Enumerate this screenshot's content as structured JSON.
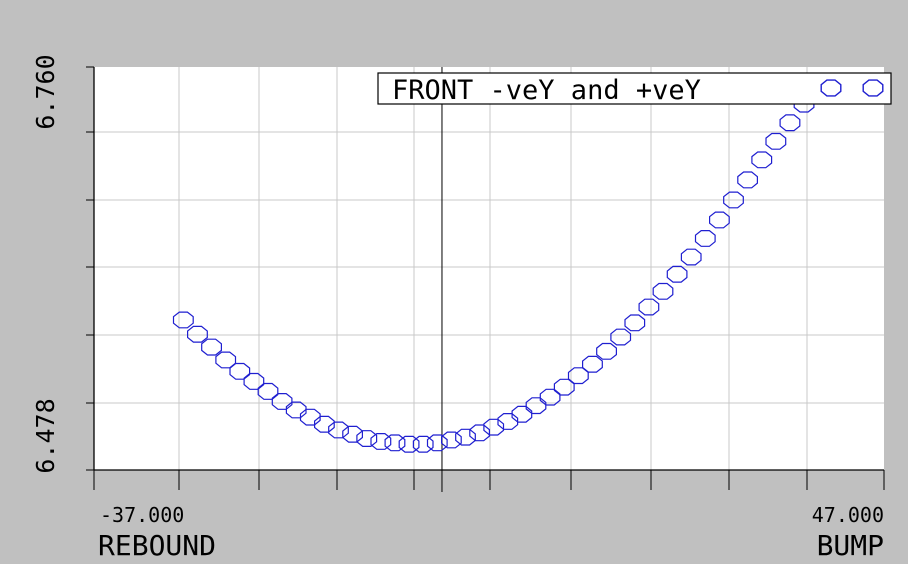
{
  "chart_data": {
    "type": "scatter",
    "xlim": [
      -37.0,
      47.0
    ],
    "ylim": [
      6.478,
      6.76
    ],
    "x_ticks": {
      "min_label": "-37.000",
      "max_label": "47.000"
    },
    "y_ticks": {
      "min_label": "6.478",
      "max_label": "6.760"
    },
    "xlabel_left": "REBOUND",
    "xlabel_right": "BUMP",
    "grid": true,
    "legend_position": "top-right",
    "colors": {
      "series": "#1f1fd0",
      "background": "#c0c0c0",
      "plot": "#ffffff",
      "grid": "#c8c8c8"
    },
    "series": [
      {
        "name": "FRONT -veY and +veY",
        "x": [
          -27.5,
          -26,
          -24.5,
          -23,
          -21.5,
          -20,
          -18.5,
          -17,
          -15.5,
          -14,
          -12.5,
          -11,
          -9.5,
          -8,
          -6.5,
          -5,
          -3.5,
          -2,
          -0.5,
          1,
          2.5,
          4,
          5.5,
          7,
          8.5,
          10,
          11.5,
          13,
          14.5,
          16,
          17.5,
          19,
          20.5,
          22,
          23.5,
          25,
          26.5,
          28,
          29.5,
          31,
          32.5,
          34,
          35.5,
          37,
          38.5
        ],
        "y": [
          6.583,
          6.573,
          6.564,
          6.555,
          6.547,
          6.54,
          6.533,
          6.526,
          6.52,
          6.515,
          6.51,
          6.506,
          6.503,
          6.5,
          6.498,
          6.497,
          6.496,
          6.496,
          6.497,
          6.499,
          6.501,
          6.504,
          6.508,
          6.512,
          6.517,
          6.523,
          6.529,
          6.536,
          6.544,
          6.552,
          6.561,
          6.571,
          6.581,
          6.592,
          6.603,
          6.615,
          6.627,
          6.64,
          6.653,
          6.667,
          6.681,
          6.695,
          6.708,
          6.721,
          6.734
        ]
      }
    ]
  }
}
